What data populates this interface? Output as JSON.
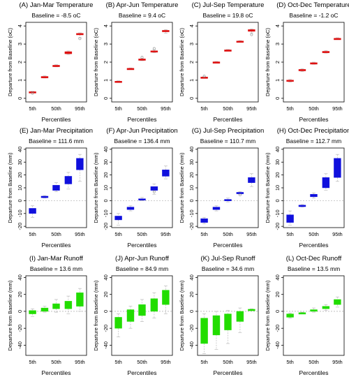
{
  "figure": {
    "percentile_labels": [
      "5th",
      "50th",
      "95th"
    ],
    "ylabel_temperature": "Departure from Baseline (oC)",
    "ylabel_other": "Departure from Baseline (mm)",
    "xlabel": "Percentiles"
  },
  "colors": {
    "temperature": "#dd1111",
    "precipitation": "#1010dd",
    "runoff": "#22dd00",
    "whisker": "#bbbbbb",
    "zero_line": "#999999"
  },
  "chart_data": [
    {
      "type": "box",
      "title": "(A) Jan-Mar Temperature",
      "baseline": "Baseline = -8.5 oC",
      "ylim": [
        -0.2,
        4.2
      ],
      "yticks": [
        0,
        1,
        2,
        3,
        4
      ],
      "color": "temperature",
      "boxes": [
        {
          "lo": 0.31,
          "q1": 0.33,
          "med": 0.35,
          "q3": 0.37,
          "hi": 0.39
        },
        {
          "lo": 1.12,
          "q1": 1.15,
          "med": 1.18,
          "q3": 1.21,
          "hi": 1.24
        },
        {
          "lo": 1.74,
          "q1": 1.77,
          "med": 1.8,
          "q3": 1.83,
          "hi": 1.86
        },
        {
          "lo": 2.42,
          "q1": 2.46,
          "med": 2.52,
          "q3": 2.58,
          "hi": 2.62
        },
        {
          "lo": 3.35,
          "q1": 3.52,
          "med": 3.56,
          "q3": 3.59,
          "hi": 3.62
        }
      ],
      "outliers": [
        [
          0,
          0.28
        ],
        [
          4,
          3.3
        ]
      ]
    },
    {
      "type": "box",
      "title": "(B) Apr-Jun Temperature",
      "baseline": "Baseline = 9.4 oC",
      "ylim": [
        -0.2,
        4.2
      ],
      "yticks": [
        0,
        1,
        2,
        3,
        4
      ],
      "color": "temperature",
      "boxes": [
        {
          "lo": 0.89,
          "q1": 0.91,
          "med": 0.93,
          "q3": 0.95,
          "hi": 0.97
        },
        {
          "lo": 1.6,
          "q1": 1.62,
          "med": 1.64,
          "q3": 1.66,
          "hi": 1.68
        },
        {
          "lo": 2.08,
          "q1": 2.12,
          "med": 2.15,
          "q3": 2.18,
          "hi": 2.22
        },
        {
          "lo": 2.52,
          "q1": 2.57,
          "med": 2.6,
          "q3": 2.63,
          "hi": 2.67
        },
        {
          "lo": 3.6,
          "q1": 3.68,
          "med": 3.72,
          "q3": 3.76,
          "hi": 3.8
        }
      ],
      "outliers": [
        [
          2,
          2.27
        ],
        [
          3,
          2.75
        ]
      ]
    },
    {
      "type": "box",
      "title": "(C) Jul-Sep Temperature",
      "baseline": "Baseline = 19.8 oC",
      "ylim": [
        -0.2,
        4.2
      ],
      "yticks": [
        0,
        1,
        2,
        3,
        4
      ],
      "color": "temperature",
      "boxes": [
        {
          "lo": 1.12,
          "q1": 1.14,
          "med": 1.16,
          "q3": 1.18,
          "hi": 1.2
        },
        {
          "lo": 1.96,
          "q1": 1.98,
          "med": 2.0,
          "q3": 2.02,
          "hi": 2.04
        },
        {
          "lo": 2.62,
          "q1": 2.64,
          "med": 2.66,
          "q3": 2.68,
          "hi": 2.7
        },
        {
          "lo": 3.11,
          "q1": 3.13,
          "med": 3.15,
          "q3": 3.17,
          "hi": 3.19
        },
        {
          "lo": 3.62,
          "q1": 3.7,
          "med": 3.75,
          "q3": 3.8,
          "hi": 3.84
        }
      ],
      "outliers": [
        [
          0,
          1.22
        ],
        [
          4,
          3.52
        ]
      ]
    },
    {
      "type": "box",
      "title": "(D) Oct-Dec Temperature",
      "baseline": "Baseline = -1.2 oC",
      "ylim": [
        -0.2,
        4.2
      ],
      "yticks": [
        0,
        1,
        2,
        3,
        4
      ],
      "color": "temperature",
      "boxes": [
        {
          "lo": 0.9,
          "q1": 0.95,
          "med": 0.98,
          "q3": 1.01,
          "hi": 1.05
        },
        {
          "lo": 1.48,
          "q1": 1.52,
          "med": 1.56,
          "q3": 1.6,
          "hi": 1.64
        },
        {
          "lo": 1.88,
          "q1": 1.91,
          "med": 1.94,
          "q3": 1.97,
          "hi": 2.0
        },
        {
          "lo": 2.5,
          "q1": 2.54,
          "med": 2.57,
          "q3": 2.6,
          "hi": 2.64
        },
        {
          "lo": 3.25,
          "q1": 3.28,
          "med": 3.3,
          "q3": 3.32,
          "hi": 3.35
        }
      ],
      "outliers": []
    },
    {
      "type": "box",
      "title": "(E) Jan-Mar Precipitation",
      "baseline": "Baseline = 111.6 mm",
      "ylim": [
        -21,
        41
      ],
      "yticks": [
        -20,
        -10,
        0,
        10,
        20,
        30,
        40
      ],
      "color": "precipitation",
      "boxes": [
        {
          "lo": -13,
          "q1": -10,
          "med": -8,
          "q3": -6,
          "hi": -4
        },
        {
          "lo": 2,
          "q1": 2.5,
          "med": 3,
          "q3": 3.5,
          "hi": 4
        },
        {
          "lo": 7,
          "q1": 8,
          "med": 10,
          "q3": 12,
          "hi": 14
        },
        {
          "lo": 9,
          "q1": 13,
          "med": 16,
          "q3": 19,
          "hi": 22
        },
        {
          "lo": 15,
          "q1": 24,
          "med": 28,
          "q3": 33,
          "hi": 36
        }
      ],
      "outliers": []
    },
    {
      "type": "box",
      "title": "(F) Apr-Jun Precipitation",
      "baseline": "Baseline = 136.4 mm",
      "ylim": [
        -21,
        41
      ],
      "yticks": [
        -20,
        -10,
        0,
        10,
        20,
        30,
        40
      ],
      "color": "precipitation",
      "boxes": [
        {
          "lo": -19,
          "q1": -15,
          "med": -14,
          "q3": -12,
          "hi": -10
        },
        {
          "lo": -8,
          "q1": -7,
          "med": -6,
          "q3": -5,
          "hi": -4
        },
        {
          "lo": 0,
          "q1": 0.5,
          "med": 1,
          "q3": 1.5,
          "hi": 2.5
        },
        {
          "lo": 5,
          "q1": 8,
          "med": 9,
          "q3": 11,
          "hi": 13
        },
        {
          "lo": 17,
          "q1": 19,
          "med": 21,
          "q3": 24,
          "hi": 27
        }
      ],
      "outliers": [
        [
          3,
          7
        ]
      ]
    },
    {
      "type": "box",
      "title": "(G) Jul-Sep Precipitation",
      "baseline": "Baseline = 110.7 mm",
      "ylim": [
        -21,
        41
      ],
      "yticks": [
        -20,
        -10,
        0,
        10,
        20,
        30,
        40
      ],
      "color": "precipitation",
      "boxes": [
        {
          "lo": -18,
          "q1": -17,
          "med": -16,
          "q3": -14,
          "hi": -13
        },
        {
          "lo": -8,
          "q1": -7,
          "med": -6,
          "q3": -5,
          "hi": -4
        },
        {
          "lo": -1,
          "q1": 0,
          "med": 0.5,
          "q3": 1,
          "hi": 2
        },
        {
          "lo": 5,
          "q1": 5.5,
          "med": 6,
          "q3": 6.5,
          "hi": 7
        },
        {
          "lo": 11,
          "q1": 14,
          "med": 16,
          "q3": 18,
          "hi": 21
        }
      ],
      "outliers": [
        [
          3,
          4.5
        ]
      ]
    },
    {
      "type": "box",
      "title": "(H) Oct-Dec Precipitation",
      "baseline": "Baseline = 112.7 mm",
      "ylim": [
        -21,
        41
      ],
      "yticks": [
        -20,
        -10,
        0,
        10,
        20,
        30,
        40
      ],
      "color": "precipitation",
      "boxes": [
        {
          "lo": -19,
          "q1": -17,
          "med": -14,
          "q3": -11,
          "hi": -8
        },
        {
          "lo": -5,
          "q1": -4.5,
          "med": -4,
          "q3": -3.5,
          "hi": -3
        },
        {
          "lo": 2,
          "q1": 3,
          "med": 4,
          "q3": 5,
          "hi": 6
        },
        {
          "lo": 8,
          "q1": 10,
          "med": 13,
          "q3": 18,
          "hi": 21
        },
        {
          "lo": 15,
          "q1": 18,
          "med": 25,
          "q3": 33,
          "hi": 36
        }
      ],
      "outliers": []
    },
    {
      "type": "box",
      "title": "(I) Jan-Mar Runoff",
      "baseline": "Baseline = 13.6 mm",
      "ylim": [
        -52,
        42
      ],
      "yticks": [
        -40,
        -20,
        0,
        20,
        40
      ],
      "color": "runoff",
      "boxes": [
        {
          "lo": -6,
          "q1": -3,
          "med": -1,
          "q3": 1,
          "hi": 3
        },
        {
          "lo": -1,
          "q1": 0,
          "med": 2,
          "q3": 4,
          "hi": 6
        },
        {
          "lo": -1,
          "q1": 3,
          "med": 6,
          "q3": 9,
          "hi": 14
        },
        {
          "lo": -3,
          "q1": 3,
          "med": 7,
          "q3": 12,
          "hi": 18
        },
        {
          "lo": 0,
          "q1": 6,
          "med": 12,
          "q3": 22,
          "hi": 27
        }
      ],
      "outliers": []
    },
    {
      "type": "box",
      "title": "(J) Apr-Jun Runoff",
      "baseline": "Baseline = 84.9 mm",
      "ylim": [
        -52,
        42
      ],
      "yticks": [
        -40,
        -20,
        0,
        20,
        40
      ],
      "color": "runoff",
      "boxes": [
        {
          "lo": -30,
          "q1": -20,
          "med": -12,
          "q3": -7,
          "hi": -3
        },
        {
          "lo": -20,
          "q1": -12,
          "med": -5,
          "q3": 2,
          "hi": 6
        },
        {
          "lo": -12,
          "q1": -5,
          "med": 2,
          "q3": 8,
          "hi": 14
        },
        {
          "lo": -8,
          "q1": 0,
          "med": 8,
          "q3": 15,
          "hi": 22
        },
        {
          "lo": -3,
          "q1": 8,
          "med": 17,
          "q3": 25,
          "hi": 30
        }
      ],
      "outliers": []
    },
    {
      "type": "box",
      "title": "(K) Jul-Sep Runoff",
      "baseline": "Baseline = 34.6 mm",
      "ylim": [
        -52,
        42
      ],
      "yticks": [
        -40,
        -20,
        0,
        20,
        40
      ],
      "color": "runoff",
      "boxes": [
        {
          "lo": -50,
          "q1": -38,
          "med": -18,
          "q3": -8,
          "hi": -3
        },
        {
          "lo": -45,
          "q1": -28,
          "med": -15,
          "q3": -5,
          "hi": 0
        },
        {
          "lo": -38,
          "q1": -22,
          "med": -10,
          "q3": -3,
          "hi": 1
        },
        {
          "lo": -25,
          "q1": -12,
          "med": -5,
          "q3": 0,
          "hi": 4
        },
        {
          "lo": 1,
          "q1": 1.5,
          "med": 2,
          "q3": 2.5,
          "hi": 3
        }
      ],
      "outliers": []
    },
    {
      "type": "box",
      "title": "(L) Oct-Dec Runoff",
      "baseline": "Baseline = 13.5 mm",
      "ylim": [
        -52,
        42
      ],
      "yticks": [
        -40,
        -20,
        0,
        20,
        40
      ],
      "color": "runoff",
      "boxes": [
        {
          "lo": -8,
          "q1": -7,
          "med": -5,
          "q3": -3,
          "hi": -2
        },
        {
          "lo": -3,
          "q1": -2.5,
          "med": -2,
          "q3": -1.5,
          "hi": -1
        },
        {
          "lo": -1,
          "q1": 0,
          "med": 1,
          "q3": 2,
          "hi": 4
        },
        {
          "lo": 1,
          "q1": 3,
          "med": 5,
          "q3": 6,
          "hi": 8
        },
        {
          "lo": 5,
          "q1": 8,
          "med": 11,
          "q3": 14,
          "hi": 17
        }
      ],
      "outliers": []
    }
  ]
}
